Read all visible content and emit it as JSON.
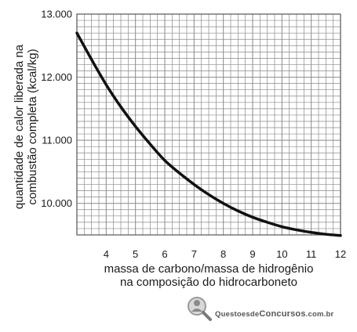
{
  "chart_data": {
    "type": "line",
    "title": "",
    "ylabel_lines": [
      "quantidade de calor liberada na",
      "combustão completa (kcal/kg)"
    ],
    "xlabel_lines": [
      "massa de carbono/massa de hidrogênio",
      "na composição do hidrocarboneto"
    ],
    "xlim": [
      3,
      12
    ],
    "ylim": [
      9500,
      13000
    ],
    "x_ticks": [
      4,
      5,
      6,
      7,
      8,
      9,
      10,
      11,
      12
    ],
    "y_ticks": [
      {
        "value": 10000,
        "label": "10.000"
      },
      {
        "value": 11000,
        "label": "11.000"
      },
      {
        "value": 12000,
        "label": "12.000"
      },
      {
        "value": 13000,
        "label": "13.000"
      }
    ],
    "grid": true,
    "series": [
      {
        "x": [
          3,
          3.5,
          4,
          4.5,
          5,
          5.5,
          6,
          6.5,
          7,
          7.5,
          8,
          8.5,
          9,
          9.5,
          10,
          10.5,
          11,
          11.5,
          12
        ],
        "y": [
          12700,
          12280,
          11880,
          11530,
          11220,
          10940,
          10680,
          10480,
          10300,
          10140,
          10000,
          9880,
          9780,
          9700,
          9630,
          9580,
          9540,
          9510,
          9490
        ]
      }
    ]
  },
  "watermark": {
    "brand": "QuestoesdeConcursos.com.br",
    "part1": "Questoesde",
    "part2": "Concursos",
    "part3": ".com.br",
    "logo_icon": "magnifier-person-icon"
  },
  "colors": {
    "grid": "#8a8a8a",
    "curve": "#111111",
    "axis_text": "#1a1a1a"
  }
}
